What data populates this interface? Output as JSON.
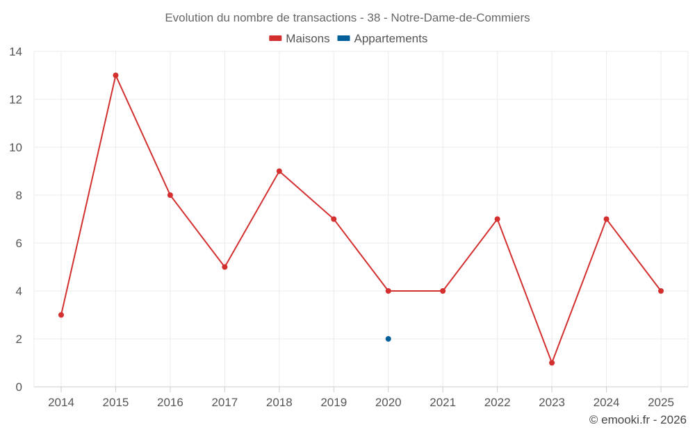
{
  "chart_data": {
    "type": "line",
    "title": "Evolution du nombre de transactions - 38 - Notre-Dame-de-Commiers",
    "xlabel": "",
    "ylabel": "",
    "categories": [
      "2014",
      "2015",
      "2016",
      "2017",
      "2018",
      "2019",
      "2020",
      "2021",
      "2022",
      "2023",
      "2024",
      "2025"
    ],
    "ylim": [
      0,
      14
    ],
    "yticks": [
      0,
      2,
      4,
      6,
      8,
      10,
      12,
      14
    ],
    "grid": true,
    "legend_position": "top-center",
    "series": [
      {
        "name": "Maisons",
        "color": "#d32f2f",
        "values": [
          3,
          13,
          8,
          5,
          9,
          7,
          4,
          4,
          7,
          1,
          7,
          4
        ]
      },
      {
        "name": "Appartements",
        "color": "#005f99",
        "values": [
          null,
          null,
          null,
          null,
          null,
          null,
          2,
          null,
          null,
          null,
          null,
          null
        ]
      }
    ],
    "credit": "© emooki.fr - 2026"
  }
}
